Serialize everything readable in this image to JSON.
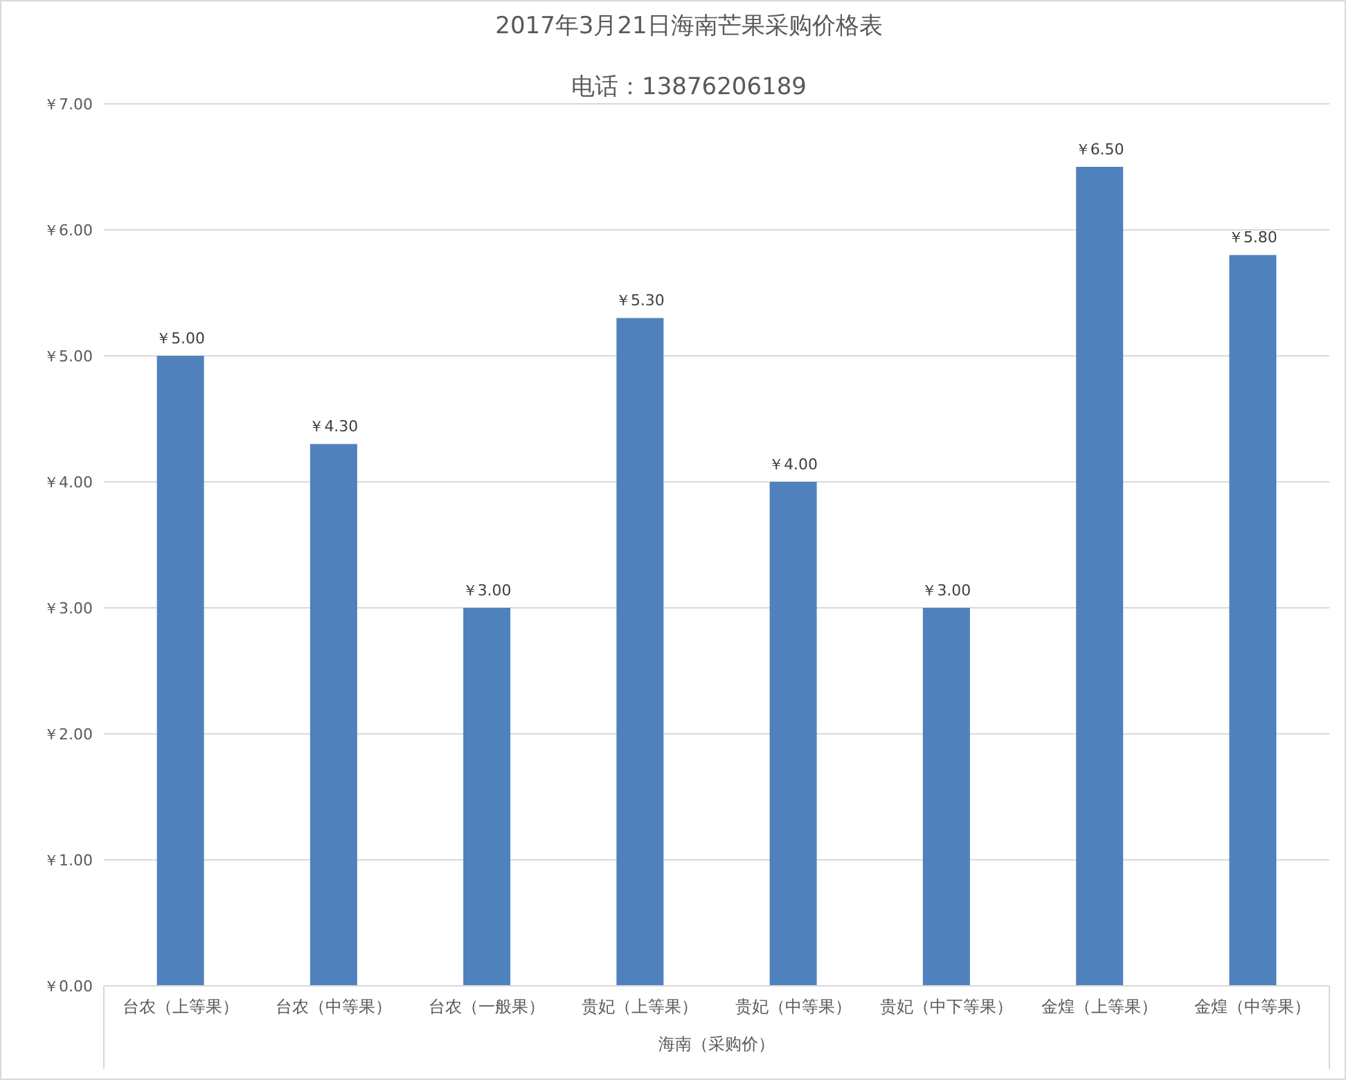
{
  "chart_data": {
    "type": "bar",
    "title": "2017年3月21日海南芒果采购价格表",
    "subtitle": "电话：13876206189",
    "xlabel": "海南（采购价）",
    "categories": [
      "台农（上等果）",
      "台农（中等果）",
      "台农（一般果）",
      "贵妃（上等果）",
      "贵妃（中等果）",
      "贵妃（中下等果）",
      "金煌（上等果）",
      "金煌（中等果）"
    ],
    "values": [
      5.0,
      4.3,
      3.0,
      5.3,
      4.0,
      3.0,
      6.5,
      5.8
    ],
    "value_labels": [
      "￥5.00",
      "￥4.30",
      "￥3.00",
      "￥5.30",
      "￥4.00",
      "￥3.00",
      "￥6.50",
      "￥5.80"
    ],
    "color": "#4f81bd",
    "ylim": [
      0,
      7
    ],
    "yticks": [
      {
        "value": 0,
        "label": "￥0.00"
      },
      {
        "value": 1,
        "label": "￥1.00"
      },
      {
        "value": 2,
        "label": "￥2.00"
      },
      {
        "value": 3,
        "label": "￥3.00"
      },
      {
        "value": 4,
        "label": "￥4.00"
      },
      {
        "value": 5,
        "label": "￥5.00"
      },
      {
        "value": 6,
        "label": "￥6.00"
      },
      {
        "value": 7,
        "label": "￥7.00"
      }
    ],
    "grid": "y"
  }
}
